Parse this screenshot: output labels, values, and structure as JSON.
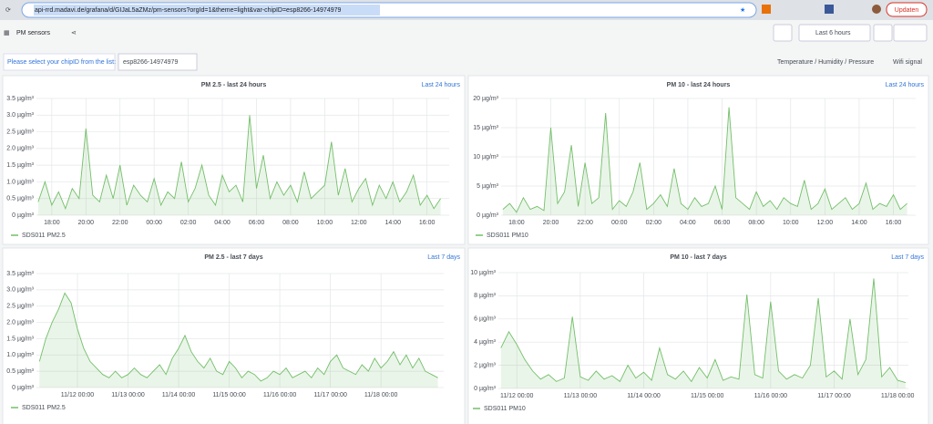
{
  "browser": {
    "url": "api-rrd.madavi.de/grafana/d/GIJaL5aZMz/pm-sensors?orgId=1&theme=light&var-chipID=esp8266-14974979",
    "update_button": "Updaten"
  },
  "dashboard": {
    "title": "PM sensors",
    "time_picker": "Last 6 hours",
    "variable_label": "Please select your chipID from the list:",
    "variable_value": "esp8266-14974979",
    "links": [
      "Temperature / Humidity / Pressure",
      "Wifi signal"
    ]
  },
  "chart_data": [
    {
      "type": "line",
      "title": "PM 2.5 - last 24 hours",
      "time_range_label": "Last 24 hours",
      "x": [
        17.2,
        17.6,
        18,
        18.4,
        18.8,
        19.2,
        19.6,
        20,
        20.4,
        20.8,
        21.2,
        21.6,
        22,
        22.4,
        22.8,
        23.2,
        23.6,
        24,
        24.4,
        24.8,
        25.2,
        25.6,
        26,
        26.4,
        26.8,
        27.2,
        27.6,
        28,
        28.4,
        28.8,
        29.2,
        29.6,
        30,
        30.4,
        30.8,
        31.2,
        31.6,
        32,
        32.4,
        32.8,
        33.2,
        33.6,
        34,
        34.4,
        34.8,
        35.2,
        35.6,
        36,
        36.4,
        36.8,
        37.2,
        37.6,
        38,
        38.4,
        38.8,
        39.2,
        39.6,
        40,
        40.4,
        40.8
      ],
      "series": [
        {
          "name": "SDS011 PM2.5",
          "color": "#73bf69",
          "values": [
            0.4,
            1.0,
            0.3,
            0.7,
            0.2,
            0.8,
            0.5,
            2.6,
            0.6,
            0.4,
            1.2,
            0.5,
            1.5,
            0.3,
            0.9,
            0.6,
            0.4,
            1.1,
            0.3,
            0.7,
            0.5,
            1.6,
            0.4,
            0.8,
            1.5,
            0.6,
            0.3,
            1.2,
            0.7,
            0.9,
            0.4,
            3.0,
            0.8,
            1.8,
            0.5,
            1.0,
            0.6,
            0.9,
            0.4,
            1.3,
            0.5,
            0.7,
            0.9,
            2.2,
            0.6,
            1.4,
            0.4,
            0.8,
            1.1,
            0.3,
            0.9,
            0.5,
            1.0,
            0.4,
            0.7,
            1.2,
            0.3,
            0.6,
            0.2,
            0.5
          ]
        }
      ],
      "xlim": [
        17.1,
        41.3
      ],
      "xticks": [
        {
          "value": 18,
          "label": "18:00"
        },
        {
          "value": 20,
          "label": "20:00"
        },
        {
          "value": 22,
          "label": "22:00"
        },
        {
          "value": 24,
          "label": "00:00"
        },
        {
          "value": 26,
          "label": "02:00"
        },
        {
          "value": 28,
          "label": "04:00"
        },
        {
          "value": 30,
          "label": "06:00"
        },
        {
          "value": 32,
          "label": "08:00"
        },
        {
          "value": 34,
          "label": "10:00"
        },
        {
          "value": 36,
          "label": "12:00"
        },
        {
          "value": 38,
          "label": "14:00"
        },
        {
          "value": 40,
          "label": "16:00"
        }
      ],
      "ylim": [
        0,
        3.5
      ],
      "yticks": [
        {
          "value": 0,
          "label": "0 µg/m³"
        },
        {
          "value": 0.5,
          "label": "0.5 µg/m³"
        },
        {
          "value": 1,
          "label": "1.0 µg/m³"
        },
        {
          "value": 1.5,
          "label": "1.5 µg/m³"
        },
        {
          "value": 2,
          "label": "2.0 µg/m³"
        },
        {
          "value": 2.5,
          "label": "2.5 µg/m³"
        },
        {
          "value": 3,
          "label": "3.0 µg/m³"
        },
        {
          "value": 3.5,
          "label": "3.5 µg/m³"
        }
      ],
      "grid": true
    },
    {
      "type": "line",
      "title": "PM 10 - last 24 hours",
      "time_range_label": "Last 24 hours",
      "x": [
        17.2,
        17.6,
        18,
        18.4,
        18.8,
        19.2,
        19.6,
        20,
        20.4,
        20.8,
        21.2,
        21.6,
        22,
        22.4,
        22.8,
        23.2,
        23.6,
        24,
        24.4,
        24.8,
        25.2,
        25.6,
        26,
        26.4,
        26.8,
        27.2,
        27.6,
        28,
        28.4,
        28.8,
        29.2,
        29.6,
        30,
        30.4,
        30.8,
        31.2,
        31.6,
        32,
        32.4,
        32.8,
        33.2,
        33.6,
        34,
        34.4,
        34.8,
        35.2,
        35.6,
        36,
        36.4,
        36.8,
        37.2,
        37.6,
        38,
        38.4,
        38.8,
        39.2,
        39.6,
        40,
        40.4,
        40.8
      ],
      "series": [
        {
          "name": "SDS011 PM10",
          "color": "#73bf69",
          "values": [
            1,
            2,
            0.5,
            3,
            1,
            1.5,
            0.8,
            15,
            2,
            4,
            12,
            1.5,
            9,
            2,
            3,
            17.5,
            1,
            2.5,
            1.5,
            4,
            9,
            1,
            2,
            3.5,
            1.5,
            8,
            2,
            1,
            3,
            1.5,
            2,
            5,
            1,
            18.5,
            3,
            2,
            1,
            4,
            1.5,
            2.5,
            1,
            3,
            2,
            1.5,
            6,
            1,
            2,
            4.5,
            1,
            2,
            3,
            1,
            2,
            5.5,
            1,
            2,
            1.5,
            3.5,
            1,
            2
          ]
        }
      ],
      "xlim": [
        17.1,
        41.3
      ],
      "xticks": [
        {
          "value": 18,
          "label": "18:00"
        },
        {
          "value": 20,
          "label": "20:00"
        },
        {
          "value": 22,
          "label": "22:00"
        },
        {
          "value": 24,
          "label": "00:00"
        },
        {
          "value": 26,
          "label": "02:00"
        },
        {
          "value": 28,
          "label": "04:00"
        },
        {
          "value": 30,
          "label": "06:00"
        },
        {
          "value": 32,
          "label": "08:00"
        },
        {
          "value": 34,
          "label": "10:00"
        },
        {
          "value": 36,
          "label": "12:00"
        },
        {
          "value": 38,
          "label": "14:00"
        },
        {
          "value": 40,
          "label": "16:00"
        }
      ],
      "ylim": [
        0,
        20
      ],
      "yticks": [
        {
          "value": 0,
          "label": "0 µg/m³"
        },
        {
          "value": 5,
          "label": "5 µg/m³"
        },
        {
          "value": 10,
          "label": "10 µg/m³"
        },
        {
          "value": 15,
          "label": "15 µg/m³"
        },
        {
          "value": 20,
          "label": "20 µg/m³"
        }
      ],
      "grid": true
    },
    {
      "type": "line",
      "title": "PM 2.5 - last 7 days",
      "time_range_label": "Last 7 days",
      "x": [
        11.25,
        11.375,
        11.5,
        11.625,
        11.75,
        11.875,
        12,
        12.125,
        12.25,
        12.375,
        12.5,
        12.625,
        12.75,
        12.875,
        13,
        13.125,
        13.25,
        13.375,
        13.5,
        13.625,
        13.75,
        13.875,
        14,
        14.125,
        14.25,
        14.375,
        14.5,
        14.625,
        14.75,
        14.875,
        15,
        15.125,
        15.25,
        15.375,
        15.5,
        15.625,
        15.75,
        15.875,
        16,
        16.125,
        16.25,
        16.375,
        16.5,
        16.625,
        16.75,
        16.875,
        17,
        17.125,
        17.25,
        17.375,
        17.5,
        17.625,
        17.75,
        17.875,
        18,
        18.125,
        18.25,
        18.375,
        18.5,
        18.625,
        18.75,
        18.875,
        19,
        19.125
      ],
      "series": [
        {
          "name": "SDS011 PM2.5",
          "color": "#73bf69",
          "values": [
            0.8,
            1.5,
            2.0,
            2.4,
            2.9,
            2.6,
            1.8,
            1.2,
            0.8,
            0.6,
            0.4,
            0.3,
            0.5,
            0.3,
            0.4,
            0.6,
            0.4,
            0.3,
            0.5,
            0.7,
            0.4,
            0.9,
            1.2,
            1.6,
            1.1,
            0.8,
            0.6,
            0.9,
            0.5,
            0.4,
            0.8,
            0.6,
            0.3,
            0.5,
            0.4,
            0.2,
            0.3,
            0.5,
            0.4,
            0.6,
            0.3,
            0.4,
            0.5,
            0.3,
            0.6,
            0.4,
            0.8,
            1.0,
            0.6,
            0.5,
            0.4,
            0.7,
            0.5,
            0.9,
            0.6,
            0.8,
            1.1,
            0.7,
            1.0,
            0.6,
            0.9,
            0.5,
            0.4,
            0.3
          ]
        }
      ],
      "xlim": [
        11.19,
        19.24
      ],
      "xticks": [
        {
          "value": 12,
          "label": "11/12 00:00"
        },
        {
          "value": 13,
          "label": "11/13 00:00"
        },
        {
          "value": 14,
          "label": "11/14 00:00"
        },
        {
          "value": 15,
          "label": "11/15 00:00"
        },
        {
          "value": 16,
          "label": "11/16 00:00"
        },
        {
          "value": 17,
          "label": "11/17 00:00"
        },
        {
          "value": 18,
          "label": "11/18 00:00"
        }
      ],
      "ylim": [
        0,
        3.5
      ],
      "yticks": [
        {
          "value": 0,
          "label": "0 µg/m³"
        },
        {
          "value": 0.5,
          "label": "0.5 µg/m³"
        },
        {
          "value": 1,
          "label": "1.0 µg/m³"
        },
        {
          "value": 1.5,
          "label": "1.5 µg/m³"
        },
        {
          "value": 2,
          "label": "2.0 µg/m³"
        },
        {
          "value": 2.5,
          "label": "2.5 µg/m³"
        },
        {
          "value": 3,
          "label": "3.0 µg/m³"
        },
        {
          "value": 3.5,
          "label": "3.5 µg/m³"
        }
      ],
      "grid": true
    },
    {
      "type": "line",
      "title": "PM 10 - last 7 days",
      "time_range_label": "Last 7 days",
      "x": [
        11.75,
        11.875,
        12,
        12.125,
        12.25,
        12.375,
        12.5,
        12.625,
        12.75,
        12.875,
        13,
        13.125,
        13.25,
        13.375,
        13.5,
        13.625,
        13.75,
        13.875,
        14,
        14.125,
        14.25,
        14.375,
        14.5,
        14.625,
        14.75,
        14.875,
        15,
        15.125,
        15.25,
        15.375,
        15.5,
        15.625,
        15.75,
        15.875,
        16,
        16.125,
        16.25,
        16.375,
        16.5,
        16.625,
        16.75,
        16.875,
        17,
        17.125,
        17.25,
        17.375,
        17.5,
        17.625,
        17.75,
        17.875,
        18,
        18.125
      ],
      "series": [
        {
          "name": "SDS011 PM10",
          "color": "#73bf69",
          "values": [
            3.5,
            4.9,
            3.8,
            2.5,
            1.5,
            0.8,
            1.2,
            0.6,
            0.9,
            6.2,
            1.0,
            0.7,
            1.5,
            0.8,
            1.1,
            0.6,
            2.0,
            0.9,
            1.4,
            0.7,
            3.5,
            1.2,
            0.8,
            1.5,
            0.6,
            1.8,
            0.9,
            2.5,
            0.7,
            1.0,
            0.8,
            8.1,
            1.2,
            0.9,
            7.5,
            1.5,
            0.8,
            1.2,
            0.9,
            2.0,
            7.8,
            1.0,
            1.5,
            0.8,
            6.0,
            1.2,
            2.5,
            9.5,
            1.0,
            1.8,
            0.7,
            0.5
          ]
        }
      ],
      "xlim": [
        11.71,
        18.17
      ],
      "xticks": [
        {
          "value": 12,
          "label": "11/12 00:00"
        },
        {
          "value": 13,
          "label": "11/13 00:00"
        },
        {
          "value": 14,
          "label": "11/14 00:00"
        },
        {
          "value": 15,
          "label": "11/15 00:00"
        },
        {
          "value": 16,
          "label": "11/16 00:00"
        },
        {
          "value": 17,
          "label": "11/17 00:00"
        },
        {
          "value": 18,
          "label": "11/18 00:00"
        }
      ],
      "ylim": [
        0,
        10
      ],
      "yticks": [
        {
          "value": 0,
          "label": "0 µg/m³"
        },
        {
          "value": 2,
          "label": "2 µg/m³"
        },
        {
          "value": 4,
          "label": "4 µg/m³"
        },
        {
          "value": 6,
          "label": "6 µg/m³"
        },
        {
          "value": 8,
          "label": "8 µg/m³"
        },
        {
          "value": 10,
          "label": "10 µg/m³"
        }
      ],
      "grid": true
    }
  ]
}
